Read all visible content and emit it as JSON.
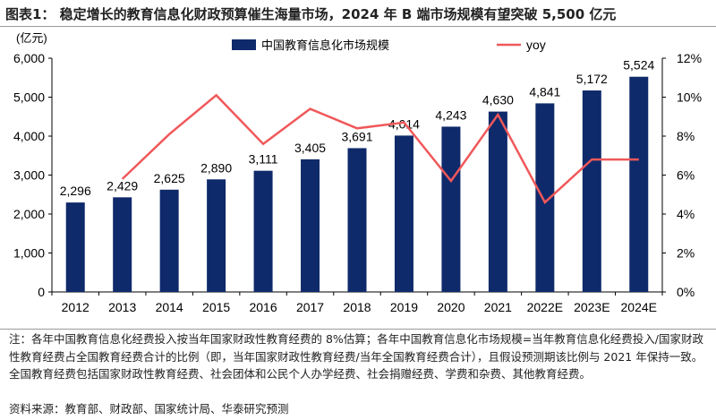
{
  "title": "图表1：  稳定增长的教育信息化财政预算催生海量市场，2024 年 B 端市场规模有望突破 5,500 亿元",
  "chart_data": {
    "type": "bar",
    "categories": [
      "2012",
      "2013",
      "2014",
      "2015",
      "2016",
      "2017",
      "2018",
      "2019",
      "2020",
      "2021",
      "2022E",
      "2023E",
      "2024E"
    ],
    "series": [
      {
        "name": "中国教育信息化市场规模",
        "type": "bar",
        "axis": "left",
        "color": "#0f2a6b",
        "values": [
          2296,
          2429,
          2625,
          2890,
          3111,
          3405,
          3691,
          4014,
          4243,
          4630,
          4841,
          5172,
          5524
        ],
        "labels": [
          "2,296",
          "2,429",
          "2,625",
          "2,890",
          "3,111",
          "3,405",
          "3,691",
          "4,014",
          "4,243",
          "4,630",
          "4,841",
          "5,172",
          "5,524"
        ]
      },
      {
        "name": "yoy",
        "type": "line",
        "axis": "right",
        "color": "#f0585a",
        "values": [
          null,
          5.8,
          8.1,
          10.1,
          7.6,
          9.4,
          8.4,
          8.7,
          5.7,
          9.1,
          4.6,
          6.8,
          6.8
        ]
      }
    ],
    "ylabel_left": "(亿元)",
    "ylim_left": [
      0,
      6000
    ],
    "yticks_left": [
      "0",
      "1,000",
      "2,000",
      "3,000",
      "4,000",
      "5,000",
      "6,000"
    ],
    "ylim_right": [
      0,
      12
    ],
    "yticks_right": [
      "0%",
      "2%",
      "4%",
      "6%",
      "8%",
      "10%",
      "12%"
    ],
    "grid": false,
    "legend": "top-center"
  },
  "notes": "注：各年中国教育信息化经费投入按当年国家财政性教育经费的 8%估算；各年中国教育信息化市场规模=当年教育信息化经费投入/国家财政性教育经费占全国教育经费合计的比例（即，当年国家财政性教育经费/当年全国教育经费合计），且假设预测期该比例与 2021 年保持一致。全国教育经费包括国家财政性教育经费、社会团体和公民个人办学经费、社会捐赠经费、学费和杂费、其他教育经费。",
  "source": "资料来源：教育部、财政部、国家统计局、华泰研究预测"
}
